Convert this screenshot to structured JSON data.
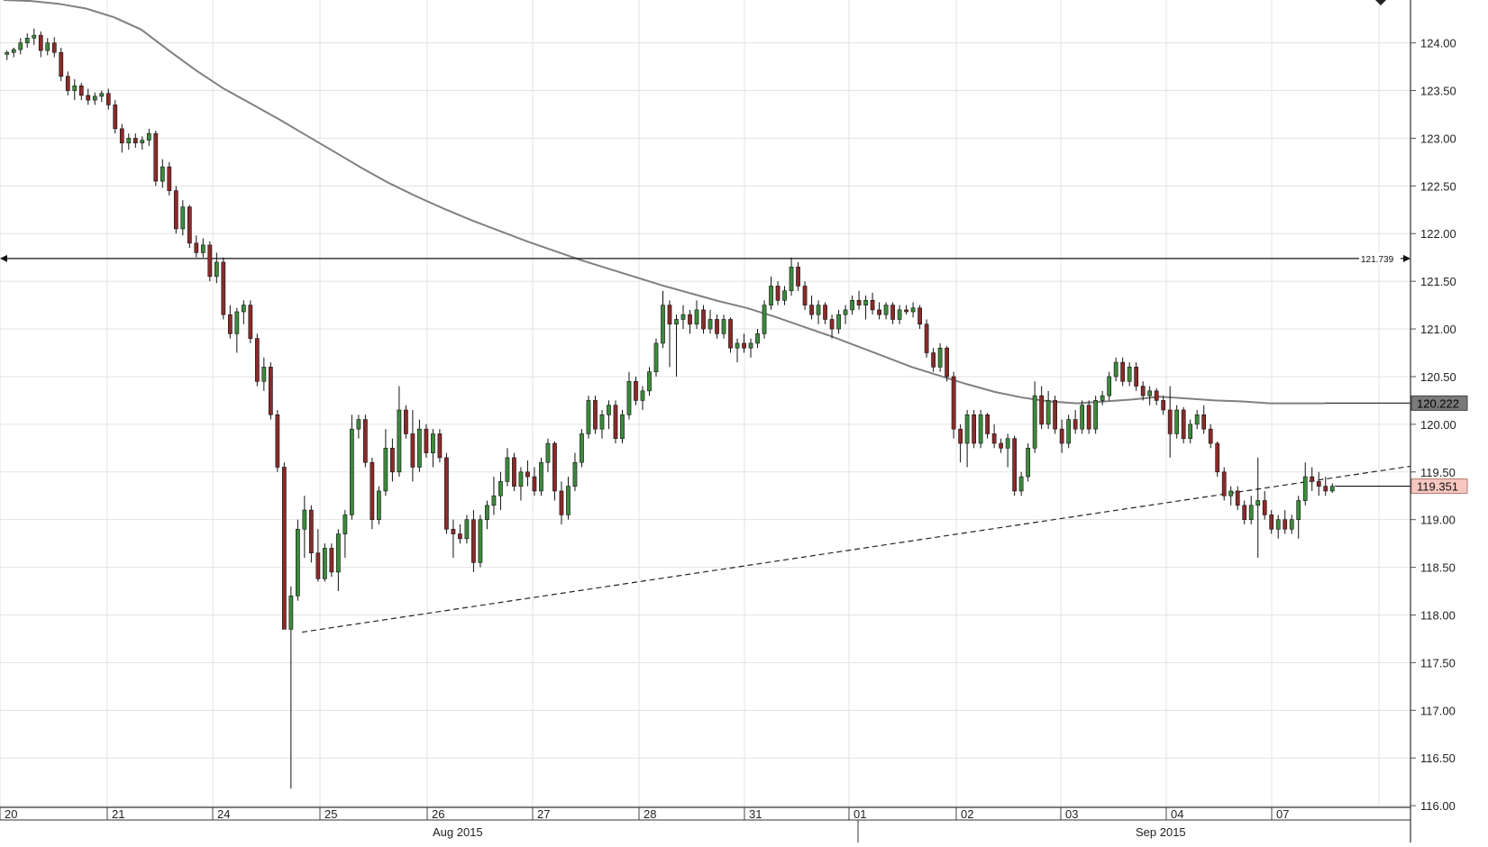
{
  "chart_data": {
    "type": "candlestick",
    "title": "",
    "xlabel": "",
    "ylabel": "",
    "ylim": [
      115.85,
      124.45
    ],
    "grid": true,
    "y_ticks": [
      "124.00",
      "123.50",
      "123.00",
      "122.50",
      "122.00",
      "121.50",
      "121.00",
      "120.50",
      "120.00",
      "119.50",
      "119.00",
      "118.50",
      "118.00",
      "117.50",
      "117.00",
      "116.50",
      "116.00"
    ],
    "day_labels": [
      "20",
      "21",
      "24",
      "25",
      "26",
      "27",
      "28",
      "31",
      "01",
      "02",
      "03",
      "04",
      "07"
    ],
    "month_labels": [
      "Aug 2015",
      "Sep 2015"
    ],
    "horizontal_level": {
      "value": 121.739,
      "label": "121.739"
    },
    "moving_average": {
      "last_value": 120.222,
      "label": "120.222",
      "color": "#808080",
      "values": [
        124.45,
        124.44,
        124.41,
        124.36,
        124.27,
        124.14,
        123.92,
        123.71,
        123.52,
        123.36,
        123.2,
        123.03,
        122.86,
        122.69,
        122.53,
        122.39,
        122.26,
        122.14,
        122.03,
        121.92,
        121.82,
        121.72,
        121.63,
        121.54,
        121.45,
        121.37,
        121.29,
        121.22,
        121.13,
        121.03,
        120.93,
        120.82,
        120.71,
        120.6,
        120.51,
        120.42,
        120.34,
        120.28,
        120.24,
        120.22,
        120.24,
        120.26,
        120.29,
        120.27,
        120.25,
        120.24,
        120.22,
        120.22,
        120.22
      ]
    },
    "trendline": {
      "start": 117.82,
      "end": 119.56,
      "style": "dashed"
    },
    "current_price": {
      "value": 119.351,
      "label": "119.351",
      "color": "#f7c8c0"
    },
    "up_color": "#3c8a3c",
    "down_color": "#8b2a2a",
    "candles": [
      [
        123.88,
        123.92,
        123.82,
        123.9
      ],
      [
        123.9,
        123.95,
        123.85,
        123.93
      ],
      [
        123.93,
        124.05,
        123.88,
        124.0
      ],
      [
        124.0,
        124.1,
        123.95,
        124.05
      ],
      [
        124.05,
        124.15,
        123.98,
        124.08
      ],
      [
        124.08,
        124.12,
        123.85,
        123.92
      ],
      [
        123.92,
        124.05,
        123.87,
        124.0
      ],
      [
        124.0,
        124.06,
        123.85,
        123.9
      ],
      [
        123.9,
        123.95,
        123.6,
        123.65
      ],
      [
        123.65,
        123.7,
        123.45,
        123.5
      ],
      [
        123.5,
        123.62,
        123.4,
        123.55
      ],
      [
        123.55,
        123.58,
        123.4,
        123.45
      ],
      [
        123.45,
        123.52,
        123.35,
        123.4
      ],
      [
        123.4,
        123.48,
        123.35,
        123.44
      ],
      [
        123.44,
        123.5,
        123.38,
        123.47
      ],
      [
        123.47,
        123.52,
        123.3,
        123.35
      ],
      [
        123.35,
        123.4,
        123.05,
        123.1
      ],
      [
        123.1,
        123.15,
        122.85,
        122.95
      ],
      [
        122.95,
        123.05,
        122.88,
        123.0
      ],
      [
        123.0,
        123.05,
        122.9,
        122.95
      ],
      [
        122.95,
        123.02,
        122.88,
        122.98
      ],
      [
        122.98,
        123.1,
        122.92,
        123.05
      ],
      [
        123.05,
        123.08,
        122.5,
        122.55
      ],
      [
        122.55,
        122.78,
        122.48,
        122.7
      ],
      [
        122.7,
        122.75,
        122.4,
        122.45
      ],
      [
        122.45,
        122.5,
        122.0,
        122.05
      ],
      [
        122.05,
        122.35,
        121.98,
        122.28
      ],
      [
        122.28,
        122.3,
        121.85,
        121.9
      ],
      [
        121.9,
        121.98,
        121.75,
        121.8
      ],
      [
        121.8,
        121.95,
        121.75,
        121.88
      ],
      [
        121.88,
        121.92,
        121.5,
        121.55
      ],
      [
        121.55,
        121.8,
        121.48,
        121.7
      ],
      [
        121.7,
        121.75,
        121.1,
        121.15
      ],
      [
        121.15,
        121.25,
        120.9,
        120.95
      ],
      [
        120.95,
        121.22,
        120.75,
        121.18
      ],
      [
        121.18,
        121.3,
        121.05,
        121.25
      ],
      [
        121.25,
        121.3,
        120.85,
        120.9
      ],
      [
        120.9,
        120.95,
        120.4,
        120.45
      ],
      [
        120.45,
        120.7,
        120.35,
        120.6
      ],
      [
        120.6,
        120.65,
        120.05,
        120.1
      ],
      [
        120.1,
        120.15,
        119.5,
        119.55
      ],
      [
        119.55,
        119.6,
        117.85,
        117.85
      ],
      [
        117.85,
        118.3,
        116.18,
        118.2
      ],
      [
        118.2,
        119.0,
        118.15,
        118.9
      ],
      [
        118.9,
        119.25,
        118.6,
        119.1
      ],
      [
        119.1,
        119.15,
        118.55,
        118.65
      ],
      [
        118.65,
        118.9,
        118.35,
        118.38
      ],
      [
        118.38,
        118.75,
        118.35,
        118.7
      ],
      [
        118.7,
        118.75,
        118.4,
        118.45
      ],
      [
        118.45,
        118.9,
        118.25,
        118.85
      ],
      [
        118.85,
        119.1,
        118.6,
        119.05
      ],
      [
        119.05,
        120.1,
        119.0,
        119.95
      ],
      [
        119.95,
        120.1,
        119.85,
        120.05
      ],
      [
        120.05,
        120.1,
        119.55,
        119.6
      ],
      [
        119.6,
        119.65,
        118.9,
        119.0
      ],
      [
        119.0,
        119.35,
        118.95,
        119.3
      ],
      [
        119.3,
        119.95,
        119.25,
        119.75
      ],
      [
        119.75,
        119.85,
        119.4,
        119.5
      ],
      [
        119.5,
        120.4,
        119.45,
        120.15
      ],
      [
        120.15,
        120.2,
        119.85,
        119.9
      ],
      [
        119.9,
        120.15,
        119.4,
        119.55
      ],
      [
        119.55,
        120.05,
        119.5,
        119.95
      ],
      [
        119.95,
        120.0,
        119.65,
        119.7
      ],
      [
        119.7,
        119.95,
        119.55,
        119.9
      ],
      [
        119.9,
        119.95,
        119.6,
        119.65
      ],
      [
        119.65,
        119.7,
        118.85,
        118.9
      ],
      [
        118.9,
        119.0,
        118.6,
        118.85
      ],
      [
        118.85,
        118.95,
        118.75,
        118.8
      ],
      [
        118.8,
        119.05,
        118.75,
        119.0
      ],
      [
        119.0,
        119.1,
        118.45,
        118.55
      ],
      [
        118.55,
        119.05,
        118.5,
        119.0
      ],
      [
        119.0,
        119.2,
        118.9,
        119.15
      ],
      [
        119.15,
        119.45,
        119.05,
        119.25
      ],
      [
        119.25,
        119.5,
        119.1,
        119.4
      ],
      [
        119.4,
        119.75,
        119.35,
        119.65
      ],
      [
        119.65,
        119.7,
        119.3,
        119.35
      ],
      [
        119.35,
        119.55,
        119.2,
        119.5
      ],
      [
        119.5,
        119.62,
        119.35,
        119.45
      ],
      [
        119.45,
        119.55,
        119.25,
        119.3
      ],
      [
        119.3,
        119.65,
        119.25,
        119.6
      ],
      [
        119.6,
        119.85,
        119.5,
        119.8
      ],
      [
        119.8,
        119.82,
        119.2,
        119.3
      ],
      [
        119.3,
        119.4,
        118.95,
        119.05
      ],
      [
        119.05,
        119.45,
        119.0,
        119.35
      ],
      [
        119.35,
        119.7,
        119.3,
        119.6
      ],
      [
        119.6,
        119.95,
        119.55,
        119.9
      ],
      [
        119.9,
        120.3,
        119.85,
        120.25
      ],
      [
        120.25,
        120.3,
        119.9,
        119.95
      ],
      [
        119.95,
        120.15,
        119.85,
        120.1
      ],
      [
        120.1,
        120.25,
        119.95,
        120.2
      ],
      [
        120.2,
        120.25,
        119.8,
        119.85
      ],
      [
        119.85,
        120.15,
        119.8,
        120.1
      ],
      [
        120.1,
        120.55,
        120.05,
        120.45
      ],
      [
        120.45,
        120.5,
        120.2,
        120.25
      ],
      [
        120.25,
        120.4,
        120.15,
        120.35
      ],
      [
        120.35,
        120.6,
        120.3,
        120.55
      ],
      [
        120.55,
        120.9,
        120.5,
        120.85
      ],
      [
        120.85,
        121.4,
        120.8,
        121.25
      ],
      [
        121.25,
        121.3,
        120.6,
        121.05
      ],
      [
        121.05,
        121.15,
        120.5,
        121.1
      ],
      [
        121.1,
        121.25,
        121.0,
        121.15
      ],
      [
        121.15,
        121.2,
        120.95,
        121.05
      ],
      [
        121.05,
        121.3,
        121.0,
        121.2
      ],
      [
        121.2,
        121.25,
        120.95,
        121.0
      ],
      [
        121.0,
        121.2,
        120.95,
        121.1
      ],
      [
        121.1,
        121.15,
        120.9,
        120.95
      ],
      [
        120.95,
        121.15,
        120.9,
        121.1
      ],
      [
        121.1,
        121.12,
        120.75,
        120.8
      ],
      [
        120.8,
        120.9,
        120.65,
        120.85
      ],
      [
        120.85,
        120.95,
        120.75,
        120.8
      ],
      [
        120.8,
        120.9,
        120.7,
        120.85
      ],
      [
        120.85,
        121.0,
        120.8,
        120.95
      ],
      [
        120.95,
        121.3,
        120.9,
        121.25
      ],
      [
        121.25,
        121.55,
        121.2,
        121.45
      ],
      [
        121.45,
        121.5,
        121.25,
        121.3
      ],
      [
        121.3,
        121.45,
        121.25,
        121.4
      ],
      [
        121.4,
        121.75,
        121.35,
        121.65
      ],
      [
        121.65,
        121.7,
        121.4,
        121.45
      ],
      [
        121.45,
        121.5,
        121.2,
        121.25
      ],
      [
        121.25,
        121.35,
        121.1,
        121.15
      ],
      [
        121.15,
        121.3,
        121.05,
        121.25
      ],
      [
        121.25,
        121.28,
        121.05,
        121.1
      ],
      [
        121.1,
        121.15,
        120.9,
        121.0
      ],
      [
        121.0,
        121.2,
        120.95,
        121.15
      ],
      [
        121.15,
        121.25,
        121.05,
        121.2
      ],
      [
        121.2,
        121.35,
        121.15,
        121.3
      ],
      [
        121.3,
        121.4,
        121.2,
        121.25
      ],
      [
        121.25,
        121.35,
        121.1,
        121.3
      ],
      [
        121.3,
        121.38,
        121.15,
        121.2
      ],
      [
        121.2,
        121.28,
        121.1,
        121.15
      ],
      [
        121.15,
        121.28,
        121.1,
        121.25
      ],
      [
        121.25,
        121.28,
        121.05,
        121.1
      ],
      [
        121.1,
        121.25,
        121.05,
        121.2
      ],
      [
        121.2,
        121.25,
        121.15,
        121.18
      ],
      [
        121.18,
        121.28,
        121.12,
        121.22
      ],
      [
        121.22,
        121.25,
        121.0,
        121.05
      ],
      [
        121.05,
        121.1,
        120.7,
        120.75
      ],
      [
        120.75,
        120.8,
        120.55,
        120.6
      ],
      [
        120.6,
        120.85,
        120.55,
        120.8
      ],
      [
        120.8,
        120.82,
        120.45,
        120.5
      ],
      [
        120.5,
        120.55,
        119.85,
        119.95
      ],
      [
        119.95,
        120.0,
        119.6,
        119.8
      ],
      [
        119.8,
        120.15,
        119.55,
        120.1
      ],
      [
        120.1,
        120.15,
        119.75,
        119.8
      ],
      [
        119.8,
        120.15,
        119.75,
        120.1
      ],
      [
        120.1,
        120.12,
        119.85,
        119.9
      ],
      [
        119.9,
        120.0,
        119.75,
        119.8
      ],
      [
        119.8,
        119.85,
        119.7,
        119.75
      ],
      [
        119.75,
        119.9,
        119.55,
        119.85
      ],
      [
        119.85,
        119.88,
        119.25,
        119.3
      ],
      [
        119.3,
        119.5,
        119.25,
        119.45
      ],
      [
        119.45,
        119.8,
        119.4,
        119.75
      ],
      [
        119.75,
        120.45,
        119.7,
        120.3
      ],
      [
        120.3,
        120.4,
        119.95,
        120.0
      ],
      [
        120.0,
        120.35,
        119.95,
        120.25
      ],
      [
        120.25,
        120.3,
        119.9,
        119.95
      ],
      [
        119.95,
        120.05,
        119.7,
        119.8
      ],
      [
        119.8,
        120.1,
        119.75,
        120.05
      ],
      [
        120.05,
        120.15,
        119.9,
        119.95
      ],
      [
        119.95,
        120.25,
        119.9,
        120.2
      ],
      [
        120.2,
        120.25,
        119.9,
        119.95
      ],
      [
        119.95,
        120.3,
        119.9,
        120.25
      ],
      [
        120.25,
        120.35,
        120.2,
        120.3
      ],
      [
        120.3,
        120.55,
        120.25,
        120.5
      ],
      [
        120.5,
        120.7,
        120.45,
        120.65
      ],
      [
        120.65,
        120.7,
        120.4,
        120.45
      ],
      [
        120.45,
        120.65,
        120.4,
        120.6
      ],
      [
        120.6,
        120.65,
        120.35,
        120.4
      ],
      [
        120.4,
        120.45,
        120.25,
        120.3
      ],
      [
        120.3,
        120.4,
        120.2,
        120.35
      ],
      [
        120.35,
        120.38,
        120.2,
        120.25
      ],
      [
        120.25,
        120.3,
        120.1,
        120.15
      ],
      [
        120.15,
        120.4,
        119.65,
        119.9
      ],
      [
        119.9,
        120.2,
        119.85,
        120.15
      ],
      [
        120.15,
        120.18,
        119.8,
        119.85
      ],
      [
        119.85,
        120.05,
        119.8,
        120.0
      ],
      [
        120.0,
        120.15,
        119.95,
        120.1
      ],
      [
        120.1,
        120.2,
        119.9,
        119.95
      ],
      [
        119.95,
        120.0,
        119.75,
        119.8
      ],
      [
        119.8,
        119.82,
        119.45,
        119.5
      ],
      [
        119.5,
        119.55,
        119.2,
        119.25
      ],
      [
        119.25,
        119.35,
        119.15,
        119.3
      ],
      [
        119.3,
        119.35,
        119.1,
        119.15
      ],
      [
        119.15,
        119.2,
        118.95,
        119.0
      ],
      [
        119.0,
        119.25,
        118.95,
        119.15
      ],
      [
        119.15,
        119.65,
        118.6,
        119.2
      ],
      [
        119.2,
        119.3,
        119.0,
        119.05
      ],
      [
        119.05,
        119.1,
        118.85,
        118.9
      ],
      [
        118.9,
        119.05,
        118.8,
        119.0
      ],
      [
        119.0,
        119.1,
        118.85,
        118.9
      ],
      [
        118.9,
        119.05,
        118.85,
        119.0
      ],
      [
        119.0,
        119.25,
        118.8,
        119.2
      ],
      [
        119.2,
        119.6,
        119.15,
        119.45
      ],
      [
        119.45,
        119.55,
        119.3,
        119.4
      ],
      [
        119.4,
        119.5,
        119.25,
        119.35
      ],
      [
        119.35,
        119.45,
        119.25,
        119.3
      ],
      [
        119.3,
        119.38,
        119.28,
        119.35
      ]
    ]
  }
}
